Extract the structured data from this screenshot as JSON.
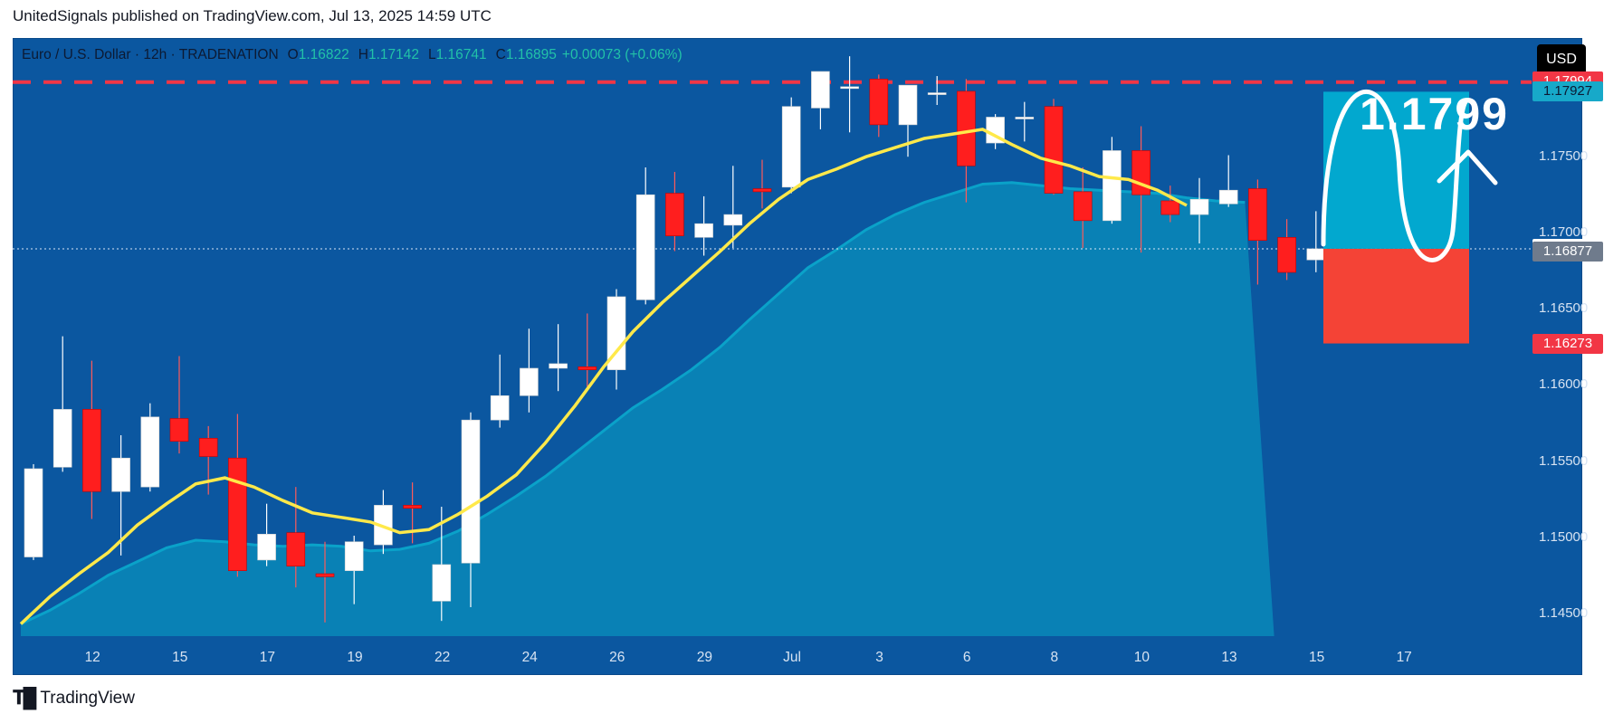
{
  "header": {
    "publisher_line": "UnitedSignals published on TradingView.com, Jul 13, 2025 14:59 UTC"
  },
  "legend": {
    "symbol": "Euro / U.S. Dollar · 12h · TRADENATION",
    "o_label": "O",
    "o_value": "1.16822",
    "h_label": "H",
    "h_value": "1.17142",
    "l_label": "L",
    "l_value": "1.16741",
    "c_label": "C",
    "c_value": "1.16895",
    "change": "+0.00073 (+0.06%)"
  },
  "currency_button": "USD",
  "annotation_text": "1.1799",
  "price_tags": [
    {
      "text": "1.17994",
      "value": 1.17994,
      "bg": "#f23645",
      "color": "#ffffff"
    },
    {
      "text": "1.17927",
      "value": 1.17927,
      "bg": "#17a9c9",
      "color": "#0c1a33"
    },
    {
      "text": "1.16895",
      "value": 1.16895,
      "bg": "#ffffff",
      "color": "#0c1a33"
    },
    {
      "text": "1.16877",
      "value": 1.16877,
      "bg": "#6f7b8c",
      "color": "#ffffff"
    },
    {
      "text": "1.16273",
      "value": 1.16273,
      "bg": "#f23645",
      "color": "#ffffff"
    }
  ],
  "footer": {
    "brand": "TradingView"
  },
  "colors": {
    "background": "#0b57a0",
    "bull": "#ffffff",
    "bear": "#ff1e1e",
    "ema_fast": "#ffe94a",
    "ema_slow_fill": "#0aa2c9",
    "target_zone": "#02a8cf",
    "stop_zone": "#f44336",
    "resistance_line": "#f23645"
  },
  "chart_data": {
    "type": "candlestick",
    "title": "Euro / U.S. Dollar · 12h · TRADENATION",
    "ylim": [
      1.1435,
      1.1828
    ],
    "y_ticks": [
      "1.14500",
      "1.15000",
      "1.15500",
      "1.16000",
      "1.16500",
      "1.17000",
      "1.17500"
    ],
    "y_tick_values": [
      1.145,
      1.15,
      1.155,
      1.16,
      1.165,
      1.17,
      1.175
    ],
    "x_ticks": [
      "12",
      "15",
      "17",
      "19",
      "22",
      "24",
      "26",
      "29",
      "Jul",
      "3",
      "6",
      "8",
      "10",
      "13",
      "15",
      "17"
    ],
    "x_tick_slots": [
      1,
      4,
      7,
      10,
      13,
      16,
      19,
      22,
      25,
      28,
      31,
      34,
      37,
      40,
      43,
      46
    ],
    "candles": [
      {
        "o": 1.1487,
        "h": 1.1548,
        "l": 1.1485,
        "c": 1.1545
      },
      {
        "o": 1.1546,
        "h": 1.1632,
        "l": 1.1543,
        "c": 1.1584
      },
      {
        "o": 1.1584,
        "h": 1.1616,
        "l": 1.1512,
        "c": 1.153
      },
      {
        "o": 1.153,
        "h": 1.1567,
        "l": 1.1488,
        "c": 1.1552
      },
      {
        "o": 1.1533,
        "h": 1.1588,
        "l": 1.153,
        "c": 1.1579
      },
      {
        "o": 1.1578,
        "h": 1.1619,
        "l": 1.1555,
        "c": 1.1563
      },
      {
        "o": 1.1565,
        "h": 1.1573,
        "l": 1.1528,
        "c": 1.1553
      },
      {
        "o": 1.1552,
        "h": 1.1581,
        "l": 1.1474,
        "c": 1.1478
      },
      {
        "o": 1.1485,
        "h": 1.1522,
        "l": 1.1481,
        "c": 1.1502
      },
      {
        "o": 1.1503,
        "h": 1.1533,
        "l": 1.1467,
        "c": 1.1481
      },
      {
        "o": 1.1476,
        "h": 1.1497,
        "l": 1.1444,
        "c": 1.1474
      },
      {
        "o": 1.1478,
        "h": 1.1501,
        "l": 1.1456,
        "c": 1.1497
      },
      {
        "o": 1.1495,
        "h": 1.1531,
        "l": 1.1489,
        "c": 1.1521
      },
      {
        "o": 1.1521,
        "h": 1.1536,
        "l": 1.1496,
        "c": 1.1519
      },
      {
        "o": 1.1458,
        "h": 1.152,
        "l": 1.1445,
        "c": 1.1482
      },
      {
        "o": 1.1483,
        "h": 1.1582,
        "l": 1.1454,
        "c": 1.1577
      },
      {
        "o": 1.1577,
        "h": 1.162,
        "l": 1.1572,
        "c": 1.1593
      },
      {
        "o": 1.1593,
        "h": 1.1637,
        "l": 1.1582,
        "c": 1.1611
      },
      {
        "o": 1.1611,
        "h": 1.164,
        "l": 1.1596,
        "c": 1.1614
      },
      {
        "o": 1.1612,
        "h": 1.1647,
        "l": 1.1599,
        "c": 1.161
      },
      {
        "o": 1.161,
        "h": 1.1663,
        "l": 1.1597,
        "c": 1.1658
      },
      {
        "o": 1.1656,
        "h": 1.1743,
        "l": 1.1653,
        "c": 1.1725
      },
      {
        "o": 1.1726,
        "h": 1.174,
        "l": 1.1688,
        "c": 1.1698
      },
      {
        "o": 1.1697,
        "h": 1.1724,
        "l": 1.1685,
        "c": 1.1706
      },
      {
        "o": 1.1705,
        "h": 1.1744,
        "l": 1.169,
        "c": 1.1712
      },
      {
        "o": 1.1729,
        "h": 1.1748,
        "l": 1.1716,
        "c": 1.1727
      },
      {
        "o": 1.173,
        "h": 1.1789,
        "l": 1.1726,
        "c": 1.1783
      },
      {
        "o": 1.1782,
        "h": 1.1806,
        "l": 1.1768,
        "c": 1.1806
      },
      {
        "o": 1.1796,
        "h": 1.1816,
        "l": 1.1766,
        "c": 1.1796
      },
      {
        "o": 1.1801,
        "h": 1.1804,
        "l": 1.1763,
        "c": 1.1771
      },
      {
        "o": 1.1771,
        "h": 1.1795,
        "l": 1.175,
        "c": 1.1797
      },
      {
        "o": 1.1791,
        "h": 1.1803,
        "l": 1.1784,
        "c": 1.1792
      },
      {
        "o": 1.1793,
        "h": 1.1801,
        "l": 1.172,
        "c": 1.1744
      },
      {
        "o": 1.1759,
        "h": 1.1778,
        "l": 1.1755,
        "c": 1.1776
      },
      {
        "o": 1.1775,
        "h": 1.1786,
        "l": 1.176,
        "c": 1.1776
      },
      {
        "o": 1.1783,
        "h": 1.1788,
        "l": 1.1725,
        "c": 1.1726
      },
      {
        "o": 1.1727,
        "h": 1.1743,
        "l": 1.169,
        "c": 1.1708
      },
      {
        "o": 1.1708,
        "h": 1.1763,
        "l": 1.1706,
        "c": 1.1754
      },
      {
        "o": 1.1754,
        "h": 1.177,
        "l": 1.1687,
        "c": 1.1725
      },
      {
        "o": 1.1721,
        "h": 1.1731,
        "l": 1.1707,
        "c": 1.1712
      },
      {
        "o": 1.1712,
        "h": 1.1736,
        "l": 1.1693,
        "c": 1.1722
      },
      {
        "o": 1.1719,
        "h": 1.1751,
        "l": 1.1717,
        "c": 1.1728
      },
      {
        "o": 1.1729,
        "h": 1.1735,
        "l": 1.1666,
        "c": 1.1695
      },
      {
        "o": 1.1697,
        "h": 1.1709,
        "l": 1.1669,
        "c": 1.1674
      },
      {
        "o": 1.16822,
        "h": 1.17142,
        "l": 1.16741,
        "c": 1.16895
      }
    ],
    "ema_fast": [
      1.1443,
      1.1461,
      1.1476,
      1.149,
      1.1508,
      1.1522,
      1.1535,
      1.1539,
      1.1533,
      1.1524,
      1.1516,
      1.1513,
      1.151,
      1.1503,
      1.1505,
      1.1515,
      1.1527,
      1.1541,
      1.1562,
      1.1586,
      1.1612,
      1.1635,
      1.1654,
      1.1671,
      1.1688,
      1.1706,
      1.1722,
      1.1735,
      1.1742,
      1.175,
      1.1756,
      1.1762,
      1.1765,
      1.1768,
      1.1758,
      1.1749,
      1.1744,
      1.1737,
      1.1735,
      1.1728,
      1.1718
    ],
    "ema_fast_start_slot": 1,
    "ema_slow": [
      1.1443,
      1.1452,
      1.1463,
      1.1475,
      1.1484,
      1.1493,
      1.1498,
      1.1497,
      1.1495,
      1.1494,
      1.1495,
      1.1494,
      1.1491,
      1.1492,
      1.1496,
      1.1504,
      1.1515,
      1.1527,
      1.154,
      1.1555,
      1.157,
      1.1585,
      1.1597,
      1.161,
      1.1625,
      1.1643,
      1.166,
      1.1677,
      1.1689,
      1.1702,
      1.1712,
      1.172,
      1.1726,
      1.1732,
      1.1733,
      1.1731,
      1.1729,
      1.1728,
      1.1727,
      1.1726,
      1.1723,
      1.1721,
      1.172
    ],
    "ema_slow_start_slot": 1,
    "resistance_level": 1.1799,
    "projection": {
      "entry": 1.16895,
      "target": 1.17927,
      "stop": 1.16273
    },
    "current_price": 1.16895
  }
}
